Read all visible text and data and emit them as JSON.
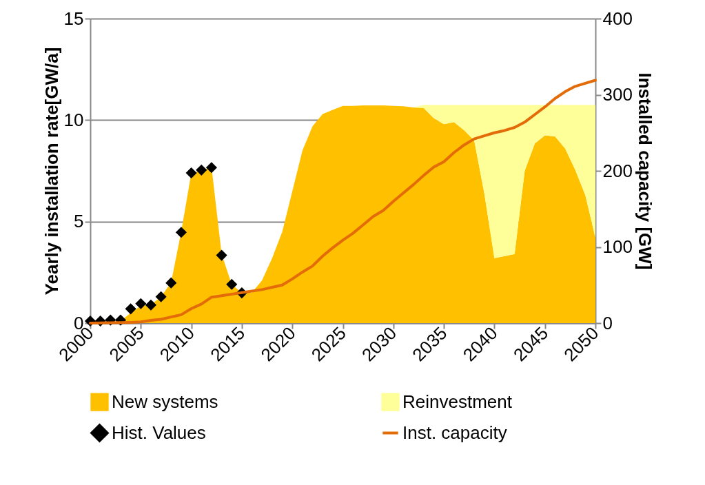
{
  "chart_data": {
    "type": "area",
    "stacked": true,
    "xlabel": null,
    "ylabel": "Yearly installation rate[GW/a]",
    "y2label": "Installed capacity [GW]",
    "x": [
      2000,
      2001,
      2002,
      2003,
      2004,
      2005,
      2006,
      2007,
      2008,
      2009,
      2010,
      2011,
      2012,
      2013,
      2014,
      2015,
      2016,
      2017,
      2018,
      2019,
      2020,
      2021,
      2022,
      2023,
      2024,
      2025,
      2026,
      2027,
      2028,
      2029,
      2030,
      2031,
      2032,
      2033,
      2034,
      2035,
      2036,
      2037,
      2038,
      2039,
      2040,
      2041,
      2042,
      2043,
      2044,
      2045,
      2046,
      2047,
      2048,
      2049,
      2050
    ],
    "series": [
      {
        "name": "New systems",
        "color": "#ffc000",
        "values": [
          0.05,
          0.05,
          0.05,
          0.1,
          0.5,
          0.85,
          0.9,
          1.3,
          2.0,
          4.5,
          7.4,
          7.5,
          7.7,
          3.4,
          1.9,
          1.5,
          1.5,
          2.1,
          3.2,
          4.5,
          6.5,
          8.5,
          9.7,
          10.3,
          10.5,
          10.7,
          10.7,
          10.72,
          10.72,
          10.72,
          10.7,
          10.68,
          10.62,
          10.6,
          10.1,
          9.8,
          9.9,
          9.5,
          9.0,
          6.4,
          3.2,
          3.3,
          3.4,
          7.5,
          8.85,
          9.25,
          9.2,
          8.6,
          7.55,
          6.3,
          4.2
        ]
      },
      {
        "name": "Reinvestment",
        "color": "#ffff99",
        "values": [
          0,
          0,
          0,
          0,
          0,
          0,
          0,
          0,
          0,
          0,
          0,
          0,
          0,
          0,
          0,
          0,
          0,
          0,
          0,
          0,
          0,
          0,
          0,
          0,
          0,
          0,
          0,
          0,
          0,
          0,
          0,
          0,
          0,
          0.15,
          0.65,
          0.95,
          0.85,
          1.25,
          1.75,
          4.35,
          7.55,
          7.45,
          7.35,
          3.25,
          1.9,
          1.5,
          1.55,
          2.15,
          3.2,
          4.45,
          6.55
        ]
      },
      {
        "name": "Hist. Values",
        "type": "scatter",
        "color": "#000000",
        "marker": "diamond",
        "x": [
          2000,
          2001,
          2002,
          2003,
          2004,
          2005,
          2006,
          2007,
          2008,
          2009,
          2010,
          2011,
          2012,
          2013,
          2014,
          2015
        ],
        "values": [
          0.1,
          0.1,
          0.15,
          0.15,
          0.7,
          0.96,
          0.89,
          1.3,
          1.98,
          4.47,
          7.4,
          7.54,
          7.66,
          3.34,
          1.91,
          1.49
        ]
      },
      {
        "name": "Inst. capacity",
        "type": "line",
        "axis": "y2",
        "color": "#e36c09",
        "values": [
          0,
          0.2,
          0.4,
          0.6,
          1,
          1.5,
          3.6,
          5,
          8,
          11,
          19,
          25,
          34,
          36,
          38,
          40,
          42,
          44,
          47,
          50,
          58,
          67,
          75,
          88,
          99,
          109,
          118,
          129,
          140,
          148,
          160,
          171,
          182,
          194,
          205,
          212,
          224,
          234,
          242,
          246,
          250,
          253,
          257,
          264,
          274,
          284,
          295,
          304,
          311,
          315,
          319
        ]
      }
    ],
    "xlim": [
      2000,
      2050
    ],
    "xticks": [
      2000,
      2005,
      2010,
      2015,
      2020,
      2025,
      2030,
      2035,
      2040,
      2045,
      2050
    ],
    "ylim": [
      0,
      15
    ],
    "yticks": [
      0,
      5,
      10,
      15
    ],
    "y2lim": [
      0,
      400
    ],
    "y2ticks": [
      0,
      100,
      200,
      300,
      400
    ],
    "grid": "y",
    "legend": "bottom",
    "line_style": "solid"
  }
}
